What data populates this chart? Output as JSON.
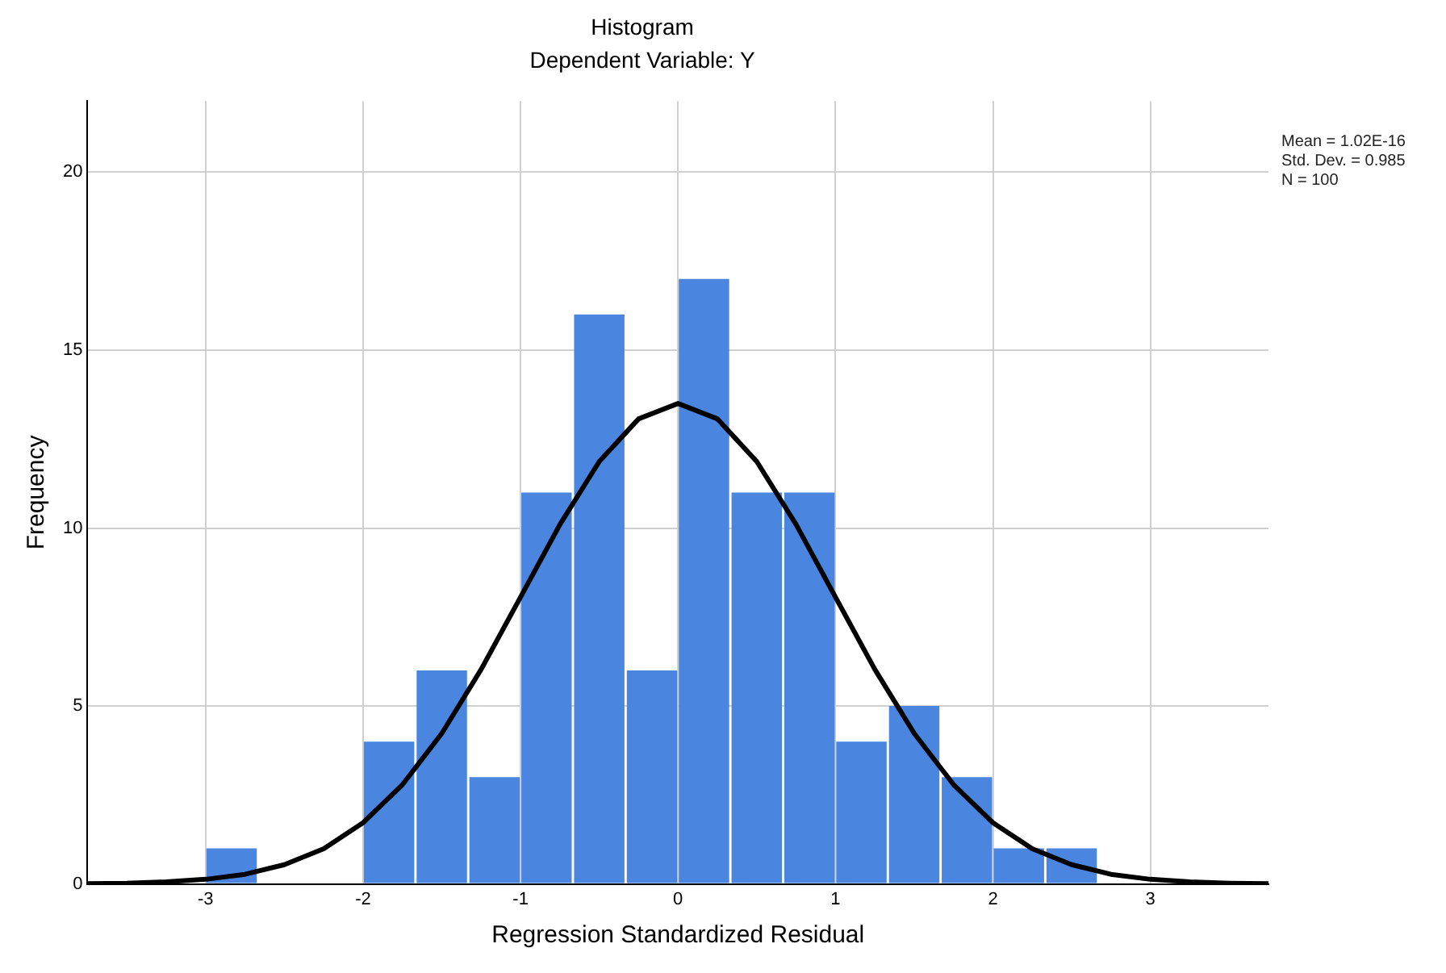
{
  "chart_data": {
    "type": "histogram",
    "title": "Histogram",
    "subtitle": "Dependent Variable: Y",
    "xlabel": "Regression Standardized Residual",
    "ylabel": "Frequency",
    "bins": [
      -3,
      -2.67,
      -2,
      -1.67,
      -1.33,
      -1,
      -0.67,
      -0.33,
      0,
      0.33,
      0.67,
      1,
      1.33,
      1.67,
      2,
      2.33,
      2.67
    ],
    "values": [
      1,
      0,
      4,
      6,
      3,
      11,
      16,
      6,
      17,
      11,
      11,
      4,
      5,
      3,
      1,
      1
    ],
    "color": "#4a86e0",
    "series": [
      {
        "type": "line",
        "color": "#000000",
        "x": [
          -3.75,
          -3.5,
          -3.25,
          -3,
          -2.75,
          -2.5,
          -2.25,
          -2,
          -1.75,
          -1.5,
          -1.25,
          -1,
          -0.75,
          -0.5,
          -0.25,
          0,
          0.25,
          0.5,
          0.75,
          1,
          1.25,
          1.5,
          1.75,
          2,
          2.25,
          2.5,
          2.75,
          3,
          3.25,
          3.5,
          3.75
        ],
        "values": [
          0.01,
          0.02,
          0.06,
          0.13,
          0.27,
          0.54,
          0.99,
          1.72,
          2.79,
          4.23,
          6.03,
          8.06,
          10.1,
          11.87,
          13.07,
          13.5,
          13.07,
          11.87,
          10.1,
          8.06,
          6.03,
          4.23,
          2.79,
          1.72,
          0.99,
          0.54,
          0.27,
          0.13,
          0.06,
          0.02,
          0.01
        ]
      }
    ],
    "xlim": [
      -3.75,
      3.75
    ],
    "xticks": [
      -3,
      -2,
      -1,
      0,
      1,
      2,
      3
    ],
    "ylim": [
      0,
      22
    ],
    "yticks": [
      0,
      5,
      10,
      15,
      20
    ],
    "grid": true,
    "annotations": [
      "Mean = 1.02E-16",
      "Std. Dev. = 0.985",
      "N = 100"
    ]
  }
}
